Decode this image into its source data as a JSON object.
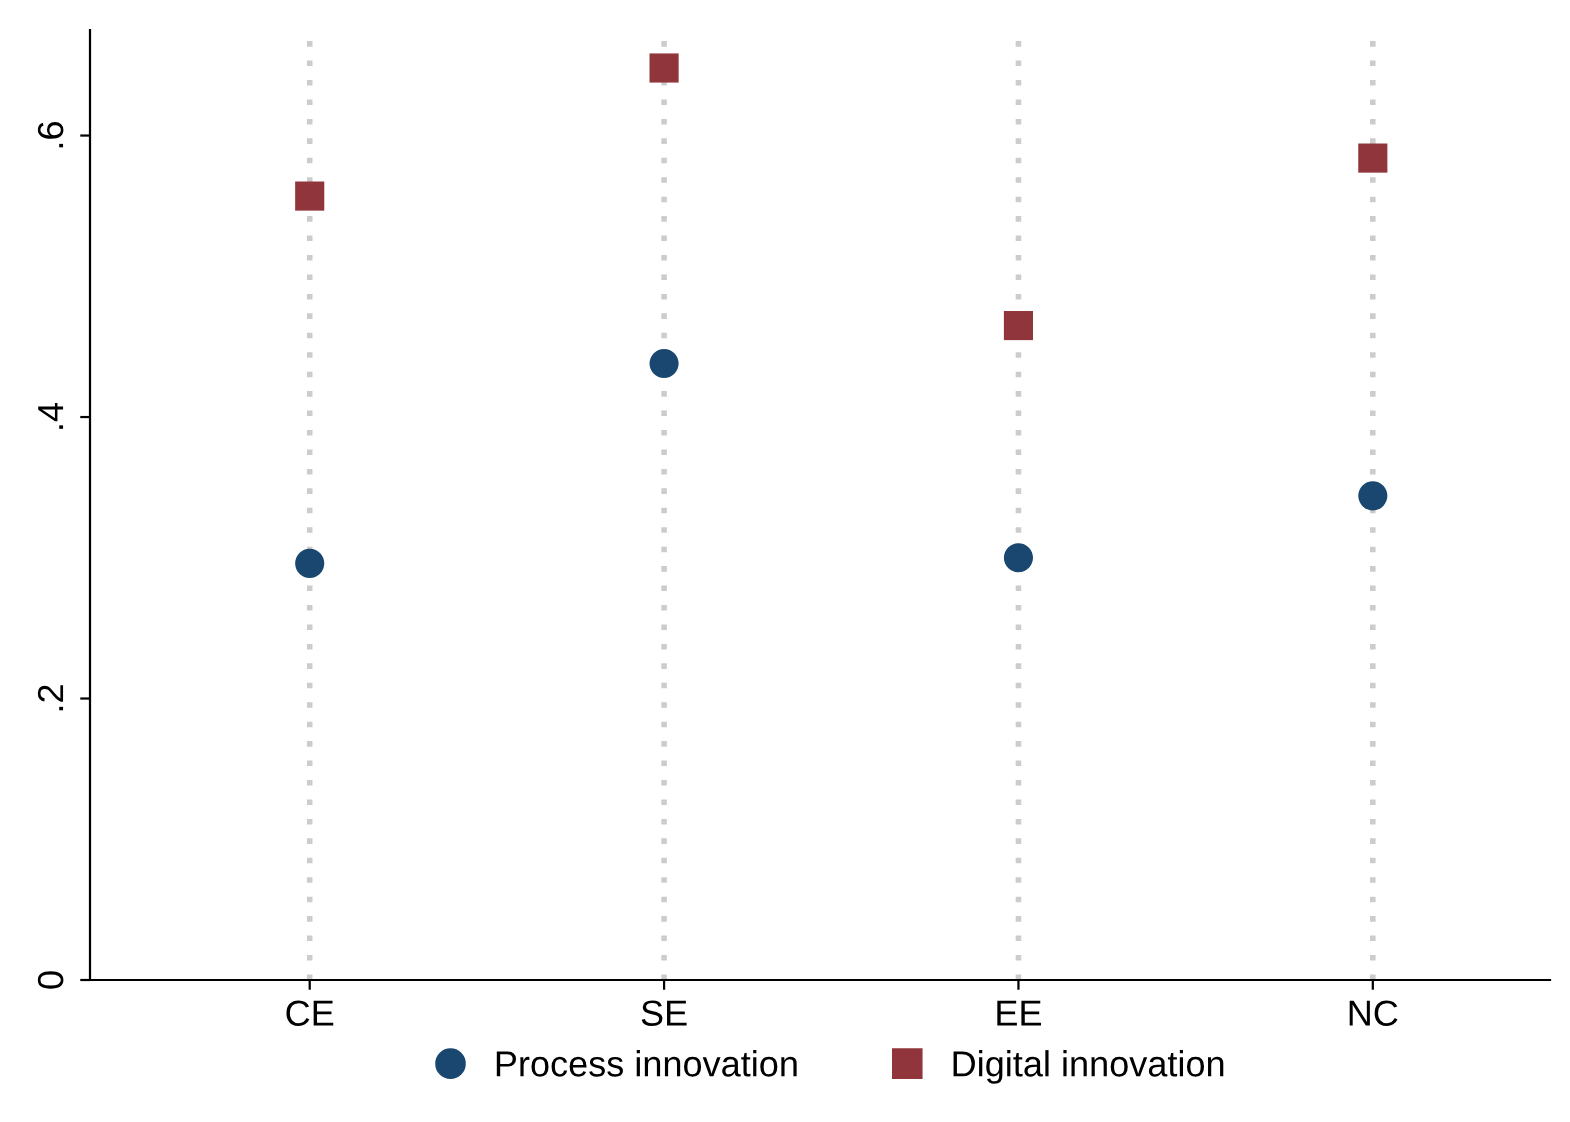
{
  "chart_data": {
    "type": "scatter",
    "categories": [
      "CE",
      "SE",
      "EE",
      "NC"
    ],
    "series": [
      {
        "name": "Process innovation",
        "color": "#1a476f",
        "marker": "circle",
        "values": [
          0.296,
          0.438,
          0.3,
          0.344
        ]
      },
      {
        "name": "Digital innovation",
        "color": "#90353b",
        "marker": "square",
        "values": [
          0.557,
          0.648,
          0.465,
          0.584
        ]
      }
    ],
    "ylim": [
      0,
      0.675
    ],
    "yticks": [
      {
        "value": 0,
        "label": "0"
      },
      {
        "value": 0.2,
        "label": ".2"
      },
      {
        "value": 0.4,
        "label": ".4"
      },
      {
        "value": 0.6,
        "label": ".6"
      }
    ],
    "grid": "x",
    "legend": "bottom"
  }
}
